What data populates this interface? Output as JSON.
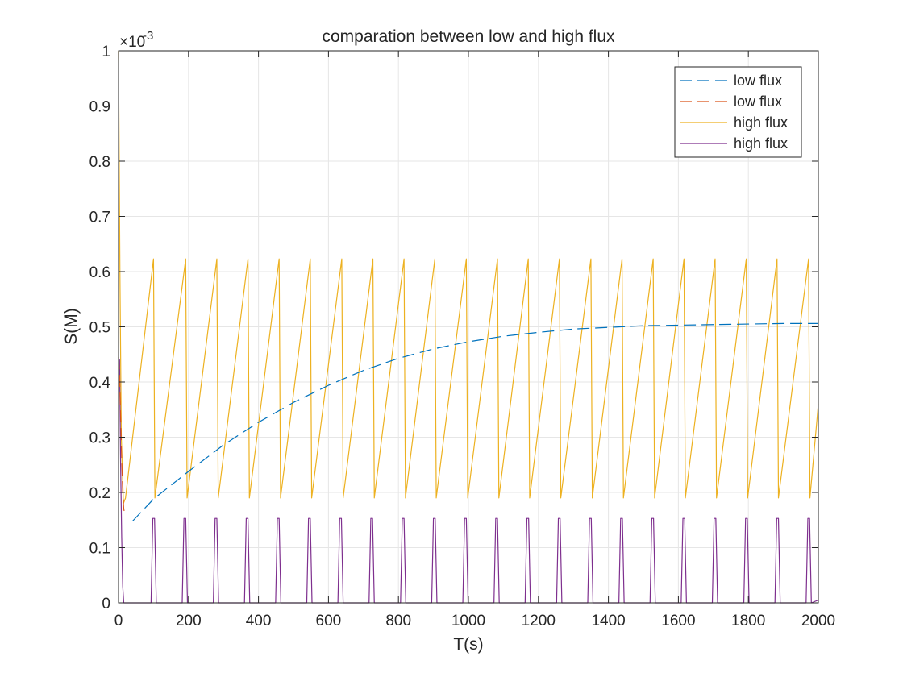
{
  "chart_data": {
    "type": "line",
    "title": "comparation between low and high flux",
    "xlabel": "T(s)",
    "ylabel": "S(M)",
    "y_exponent_label": "×10",
    "y_exponent_power": "-3",
    "xlim": [
      0,
      2000
    ],
    "ylim": [
      0,
      0.001
    ],
    "x_ticks": [
      0,
      200,
      400,
      600,
      800,
      1000,
      1200,
      1400,
      1600,
      1800,
      2000
    ],
    "x_tick_labels": [
      "0",
      "200",
      "400",
      "600",
      "800",
      "1000",
      "1200",
      "1400",
      "1600",
      "1800",
      "2000"
    ],
    "y_ticks": [
      0,
      0.0001,
      0.0002,
      0.0003,
      0.0004,
      0.0005,
      0.0006,
      0.0007,
      0.0008,
      0.0009,
      0.001
    ],
    "y_tick_labels": [
      "0",
      "0.1",
      "0.2",
      "0.3",
      "0.4",
      "0.5",
      "0.6",
      "0.7",
      "0.8",
      "0.9",
      "1"
    ],
    "grid": true,
    "legend_position": "top-right",
    "series": [
      {
        "name": "low flux",
        "color": "#0072BD",
        "dash": "dashed",
        "x": [
          40,
          100,
          200,
          300,
          400,
          500,
          600,
          700,
          800,
          900,
          1000,
          1100,
          1200,
          1300,
          1400,
          1500,
          1600,
          1700,
          1800,
          1900,
          2000
        ],
        "y": [
          0.000148,
          0.000188,
          0.000238,
          0.000286,
          0.000327,
          0.000363,
          0.000394,
          0.000421,
          0.000443,
          0.00046,
          0.000473,
          0.000483,
          0.00049,
          0.000496,
          0.000499,
          0.000502,
          0.000503,
          0.000504,
          0.000505,
          0.000506,
          0.000506
        ]
      },
      {
        "name": "low flux",
        "color": "#D95319",
        "dash": "dashed",
        "x": [
          0,
          3,
          6,
          9,
          12,
          15,
          18
        ],
        "y": [
          0.000445,
          0.00041,
          0.00034,
          0.00026,
          0.0002,
          0.00017,
          0.00016
        ]
      },
      {
        "name": "high flux",
        "color": "#EDB120",
        "dash": "solid",
        "x": [
          0,
          4,
          8,
          14,
          20,
          100,
          104,
          192,
          196,
          281,
          285,
          370,
          374,
          459,
          463,
          548,
          552,
          638,
          642,
          727,
          731,
          816,
          820,
          904,
          908,
          994,
          998,
          1083,
          1087,
          1171,
          1175,
          1260,
          1264,
          1350,
          1354,
          1439,
          1443,
          1528,
          1532,
          1616,
          1620,
          1705,
          1709,
          1794,
          1798,
          1882,
          1886,
          1972,
          1976,
          2000
        ],
        "y": [
          0.001,
          0.0006,
          0.0003,
          0.00018,
          0.00019,
          0.000623,
          0.00019,
          0.000623,
          0.00019,
          0.000623,
          0.00019,
          0.000623,
          0.00019,
          0.000623,
          0.00019,
          0.000623,
          0.00019,
          0.000623,
          0.00019,
          0.000623,
          0.00019,
          0.000623,
          0.00019,
          0.000623,
          0.00019,
          0.000623,
          0.00019,
          0.000623,
          0.00019,
          0.000623,
          0.00019,
          0.000623,
          0.00019,
          0.000623,
          0.00019,
          0.000623,
          0.00019,
          0.000623,
          0.00019,
          0.000623,
          0.00019,
          0.000623,
          0.00019,
          0.000623,
          0.00019,
          0.000623,
          0.00019,
          0.000623,
          0.00019,
          0.00036
        ]
      },
      {
        "name": "high flux",
        "color": "#7E2F8E",
        "dash": "solid",
        "x": [
          0,
          3,
          6,
          9,
          12,
          15,
          93,
          98,
          103,
          108,
          182,
          187,
          192,
          197,
          271,
          276,
          281,
          286,
          360,
          365,
          370,
          375,
          449,
          454,
          459,
          464,
          538,
          543,
          548,
          553,
          627,
          632,
          637,
          642,
          716,
          721,
          726,
          731,
          806,
          811,
          816,
          821,
          895,
          900,
          905,
          910,
          984,
          989,
          994,
          999,
          1073,
          1078,
          1083,
          1088,
          1162,
          1167,
          1172,
          1177,
          1252,
          1257,
          1262,
          1267,
          1341,
          1346,
          1351,
          1356,
          1430,
          1435,
          1440,
          1445,
          1519,
          1524,
          1529,
          1534,
          1608,
          1613,
          1618,
          1623,
          1697,
          1702,
          1707,
          1712,
          1787,
          1792,
          1797,
          1802,
          1876,
          1881,
          1886,
          1891,
          1965,
          1970,
          1975,
          1980,
          2000
        ],
        "y": [
          0.00044,
          0.00044,
          0.00025,
          0.00012,
          3e-05,
          0,
          0,
          0.000153,
          0.000153,
          0,
          0,
          0.000153,
          0.000153,
          0,
          0,
          0.000153,
          0.000153,
          0,
          0,
          0.000153,
          0.000153,
          0,
          0,
          0.000153,
          0.000153,
          0,
          0,
          0.000153,
          0.000153,
          0,
          0,
          0.000153,
          0.000153,
          0,
          0,
          0.000153,
          0.000153,
          0,
          0,
          0.000153,
          0.000153,
          0,
          0,
          0.000153,
          0.000153,
          0,
          0,
          0.000153,
          0.000153,
          0,
          0,
          0.000153,
          0.000153,
          0,
          0,
          0.000153,
          0.000153,
          0,
          0,
          0.000153,
          0.000153,
          0,
          0,
          0.000153,
          0.000153,
          0,
          0,
          0.000153,
          0.000153,
          0,
          0,
          0.000153,
          0.000153,
          0,
          0,
          0.000153,
          0.000153,
          0,
          0,
          0.000153,
          0.000153,
          0,
          0,
          0.000153,
          0.000153,
          0,
          0,
          0.000153,
          0.000153,
          0,
          0,
          0.000153,
          0.000153,
          0,
          5e-06
        ]
      }
    ]
  }
}
